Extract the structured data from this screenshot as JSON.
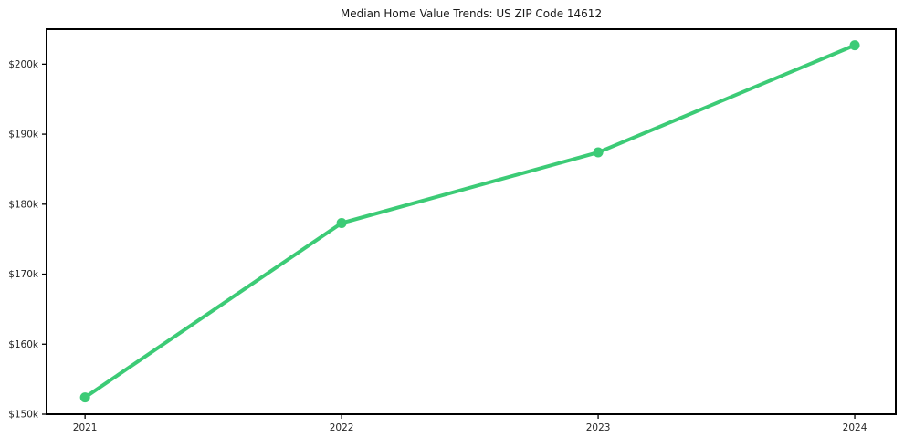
{
  "chart_data": {
    "type": "line",
    "title": "Median Home Value Trends: US ZIP Code 14612",
    "xlabel": "",
    "ylabel": "",
    "x": [
      2021,
      2022,
      2023,
      2024
    ],
    "series": [
      {
        "name": "Median Home Value",
        "values": [
          152400,
          177300,
          187400,
          202700
        ]
      }
    ],
    "xticks": {
      "values": [
        2021,
        2022,
        2023,
        2024
      ],
      "labels": [
        "2021",
        "2022",
        "2023",
        "2024"
      ]
    },
    "yticks": {
      "values": [
        150000,
        160000,
        170000,
        180000,
        190000,
        200000
      ],
      "labels": [
        "$150k",
        "$160k",
        "$170k",
        "$180k",
        "$190k",
        "$200k"
      ]
    },
    "xlim": [
      2020.85,
      2024.16
    ],
    "ylim": [
      150000,
      205000
    ],
    "grid": false,
    "legend": "none",
    "line_color": "#3ccb76",
    "marker_color": "#3ccb76",
    "axis_color": "#000000",
    "tick_label_color": "#262626"
  }
}
